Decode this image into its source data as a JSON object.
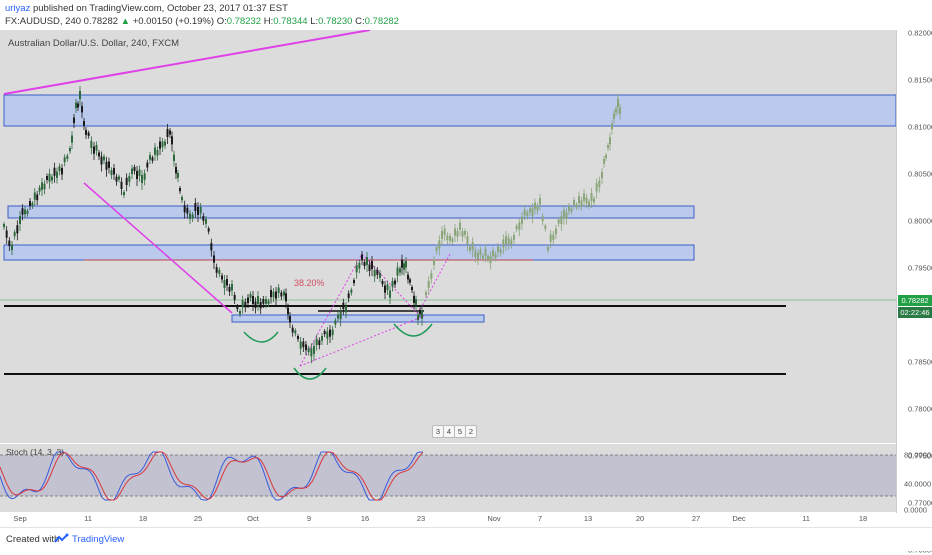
{
  "header": {
    "user": "uriyaz",
    "published": "published on TradingView.com, October 23, 2017 01:37 EST",
    "symbol": "FX:AUDUSD, 240",
    "last": "0.78282",
    "change_arrow": "▲",
    "change": "+0.00150 (+0.19%)",
    "open_label": "O:",
    "open": "0.78232",
    "high_label": "H:",
    "high": "0.78344",
    "low_label": "L:",
    "low": "0.78230",
    "close_label": "C:",
    "close": "0.78282"
  },
  "chart": {
    "symbol_title": "Australian Dollar/U.S. Dollar, 240, FXCM",
    "price_ticks": [
      "0.82000",
      "0.81500",
      "0.81000",
      "0.80500",
      "0.80000",
      "0.79500",
      "0.79000",
      "0.78500",
      "0.78000",
      "0.77500",
      "0.77000",
      "0.76500"
    ],
    "current_price_label": "0.78282",
    "countdown_label": "02:22:46",
    "fib_label": "38.20%",
    "event_badges": [
      "3",
      "4",
      "5",
      "2"
    ],
    "time_ticks": [
      "Sep",
      "11",
      "18",
      "25",
      "Oct",
      "9",
      "16",
      "23",
      "Nov",
      "7",
      "13",
      "20",
      "27",
      "Dec",
      "11",
      "18"
    ],
    "colors": {
      "background": "#dcdcdc",
      "zone_fill": "#b4c6ee",
      "zone_border": "#3a5ec8",
      "trendline": "#e040e8",
      "bull_candle": "#2e6a3e",
      "bear_candle": "#1a1a1a",
      "projection": "#8aa57a",
      "fib_line": "#c04050",
      "support_line": "#111111",
      "countdown_bg": "#2a7a45",
      "price_bg": "#22a046"
    }
  },
  "stochastic": {
    "title": "Stoch (14, 3, 3)",
    "ticks": [
      "80.0000",
      "40.0000",
      "0.0000"
    ],
    "colors": {
      "k": "#3b5bdb",
      "d": "#d9363e",
      "band": "#b0b0c8"
    }
  },
  "footer": {
    "created_with": "Created with",
    "brand": "TradingView"
  }
}
